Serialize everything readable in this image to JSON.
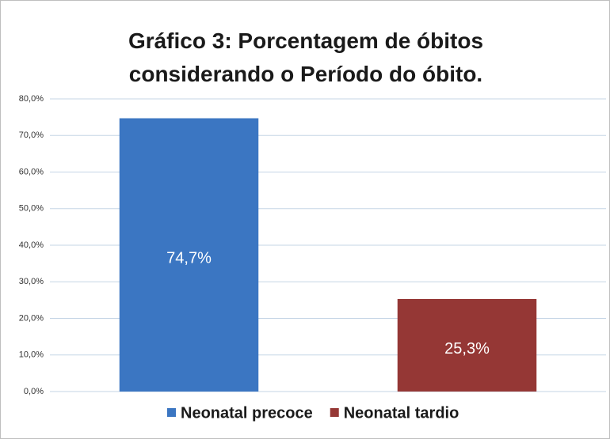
{
  "chart_data": {
    "type": "bar",
    "title": "Gráfico 3: Porcentagem de óbitos considerando o Período do óbito.",
    "categories": [
      null
    ],
    "series": [
      {
        "name": "Neonatal precoce",
        "color": "#3b76c2",
        "values": [
          74.7
        ],
        "value_labels": [
          "74,7%"
        ]
      },
      {
        "name": "Neonatal tardio",
        "color": "#953735",
        "values": [
          25.3
        ],
        "value_labels": [
          "25,3%"
        ]
      }
    ],
    "ylim": [
      0,
      80
    ],
    "yticks": [
      {
        "value": 0,
        "label": "0,0%"
      },
      {
        "value": 10,
        "label": "10,0%"
      },
      {
        "value": 20,
        "label": "20,0%"
      },
      {
        "value": 30,
        "label": "30,0%"
      },
      {
        "value": 40,
        "label": "40,0%"
      },
      {
        "value": 50,
        "label": "50,0%"
      },
      {
        "value": 60,
        "label": "60,0%"
      },
      {
        "value": 70,
        "label": "70,0%"
      },
      {
        "value": 80,
        "label": "80,0%"
      }
    ],
    "grid": true,
    "legend": "bottom"
  }
}
